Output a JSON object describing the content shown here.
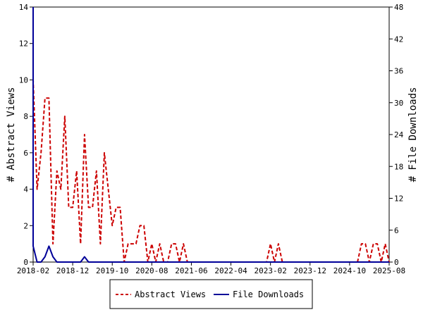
{
  "chart_data": {
    "type": "line",
    "x_tick_labels": [
      "2018-02",
      "2018-12",
      "2019-10",
      "2020-08",
      "2021-06",
      "2022-04",
      "2023-02",
      "2023-12",
      "2024-10",
      "2025-08"
    ],
    "x_range": [
      "2018-02",
      "2025-08"
    ],
    "left_axis": {
      "label": "# Abstract Views",
      "range": [
        0,
        14
      ],
      "ticks": [
        0,
        2,
        4,
        6,
        8,
        10,
        12,
        14
      ]
    },
    "right_axis": {
      "label": "# File Downloads",
      "range": [
        0,
        48
      ],
      "ticks": [
        0,
        6,
        12,
        18,
        24,
        30,
        36,
        42,
        48
      ]
    },
    "grid": false,
    "legend_position": "bottom",
    "series": [
      {
        "name": "Abstract Views",
        "axis": "left",
        "color": "#cc0000",
        "style": "dashed",
        "x": [
          "2018-01",
          "2018-02",
          "2018-03",
          "2018-04",
          "2018-05",
          "2018-06",
          "2018-07",
          "2018-08",
          "2018-09",
          "2018-10",
          "2018-11",
          "2018-12",
          "2019-01",
          "2019-02",
          "2019-03",
          "2019-04",
          "2019-05",
          "2019-06",
          "2019-07",
          "2019-08",
          "2019-09",
          "2019-10",
          "2019-11",
          "2019-12",
          "2020-01",
          "2020-02",
          "2020-03",
          "2020-04",
          "2020-05",
          "2020-06",
          "2020-07",
          "2020-08",
          "2020-09",
          "2020-10",
          "2020-11",
          "2020-12",
          "2021-01",
          "2021-02",
          "2021-03",
          "2021-04",
          "2021-05",
          "2021-06",
          "2021-07",
          "2021-08",
          "2021-09",
          "2021-10",
          "2021-11",
          "2021-12",
          "2022-01",
          "2022-02",
          "2022-03",
          "2022-04",
          "2022-05",
          "2022-06",
          "2022-07",
          "2022-08",
          "2022-09",
          "2022-10",
          "2022-11",
          "2022-12",
          "2023-01",
          "2023-02",
          "2023-03",
          "2023-04",
          "2023-05",
          "2023-06",
          "2023-07",
          "2023-08",
          "2023-09",
          "2023-10",
          "2023-11",
          "2023-12",
          "2024-01",
          "2024-02",
          "2024-03",
          "2024-04",
          "2024-05",
          "2024-06",
          "2024-07",
          "2024-08",
          "2024-09",
          "2024-10",
          "2024-11",
          "2024-12",
          "2025-01",
          "2025-02",
          "2025-03",
          "2025-04",
          "2025-05",
          "2025-06",
          "2025-07",
          "2025-08"
        ],
        "y": [
          5,
          10,
          4,
          6,
          9,
          9,
          1,
          5,
          4,
          8,
          3,
          3,
          5,
          1,
          7,
          3,
          3,
          5,
          1,
          6,
          4,
          2,
          3,
          3,
          0,
          1,
          1,
          1,
          2,
          2,
          0,
          1,
          0,
          1,
          0,
          0,
          1,
          1,
          0,
          1,
          0,
          0,
          0,
          0,
          0,
          0,
          0,
          0,
          0,
          0,
          0,
          0,
          0,
          0,
          0,
          0,
          0,
          0,
          0,
          0,
          0,
          1,
          0,
          1,
          0,
          0,
          0,
          0,
          0,
          0,
          0,
          0,
          0,
          0,
          0,
          0,
          0,
          0,
          0,
          0,
          0,
          0,
          0,
          0,
          1,
          1,
          0,
          1,
          1,
          0,
          1,
          0
        ]
      },
      {
        "name": "File Downloads",
        "axis": "right",
        "color": "#000099",
        "style": "solid",
        "x": [
          "2018-01",
          "2018-02",
          "2018-03",
          "2018-04",
          "2018-05",
          "2018-06",
          "2018-07",
          "2018-08",
          "2018-09",
          "2018-10",
          "2018-11",
          "2018-12",
          "2019-01",
          "2019-02",
          "2019-03",
          "2019-04",
          "2019-05",
          "2019-06",
          "2019-07",
          "2019-08",
          "2019-09",
          "2019-10",
          "2019-11",
          "2019-12",
          "2020-01",
          "2020-02",
          "2020-03",
          "2020-04",
          "2020-05",
          "2020-06",
          "2020-07",
          "2020-08",
          "2020-09",
          "2020-10",
          "2020-11",
          "2020-12",
          "2021-01",
          "2021-02",
          "2021-03",
          "2021-04",
          "2021-05",
          "2021-06",
          "2021-07",
          "2021-08",
          "2021-09",
          "2021-10",
          "2021-11",
          "2021-12",
          "2022-01",
          "2022-02",
          "2022-03",
          "2022-04",
          "2022-05",
          "2022-06",
          "2022-07",
          "2022-08",
          "2022-09",
          "2022-10",
          "2022-11",
          "2022-12",
          "2023-01",
          "2023-02",
          "2023-03",
          "2023-04",
          "2023-05",
          "2023-06",
          "2023-07",
          "2023-08",
          "2023-09",
          "2023-10",
          "2023-11",
          "2023-12",
          "2024-01",
          "2024-02",
          "2024-03",
          "2024-04",
          "2024-05",
          "2024-06",
          "2024-07",
          "2024-08",
          "2024-09",
          "2024-10",
          "2024-11",
          "2024-12",
          "2025-01",
          "2025-02",
          "2025-03",
          "2025-04",
          "2025-05",
          "2025-06",
          "2025-07",
          "2025-08"
        ],
        "y": [
          48,
          3,
          0,
          0,
          1,
          3,
          1,
          0,
          0,
          0,
          0,
          0,
          0,
          0,
          1,
          0,
          0,
          0,
          0,
          0,
          0,
          0,
          0,
          0,
          0,
          0,
          0,
          0,
          0,
          0,
          0,
          0,
          0,
          0,
          0,
          0,
          0,
          0,
          0,
          0,
          0,
          0,
          0,
          0,
          0,
          0,
          0,
          0,
          0,
          0,
          0,
          0,
          0,
          0,
          0,
          0,
          0,
          0,
          0,
          0,
          0,
          0,
          0,
          0,
          0,
          0,
          0,
          0,
          0,
          0,
          0,
          0,
          0,
          0,
          0,
          0,
          0,
          0,
          0,
          0,
          0,
          0,
          0,
          0,
          0,
          0,
          0,
          0,
          0,
          0,
          0,
          0
        ]
      }
    ]
  },
  "legend": {
    "items": [
      {
        "label": "Abstract Views",
        "color": "#cc0000",
        "style": "dashed"
      },
      {
        "label": "File Downloads",
        "color": "#000099",
        "style": "solid"
      }
    ]
  }
}
